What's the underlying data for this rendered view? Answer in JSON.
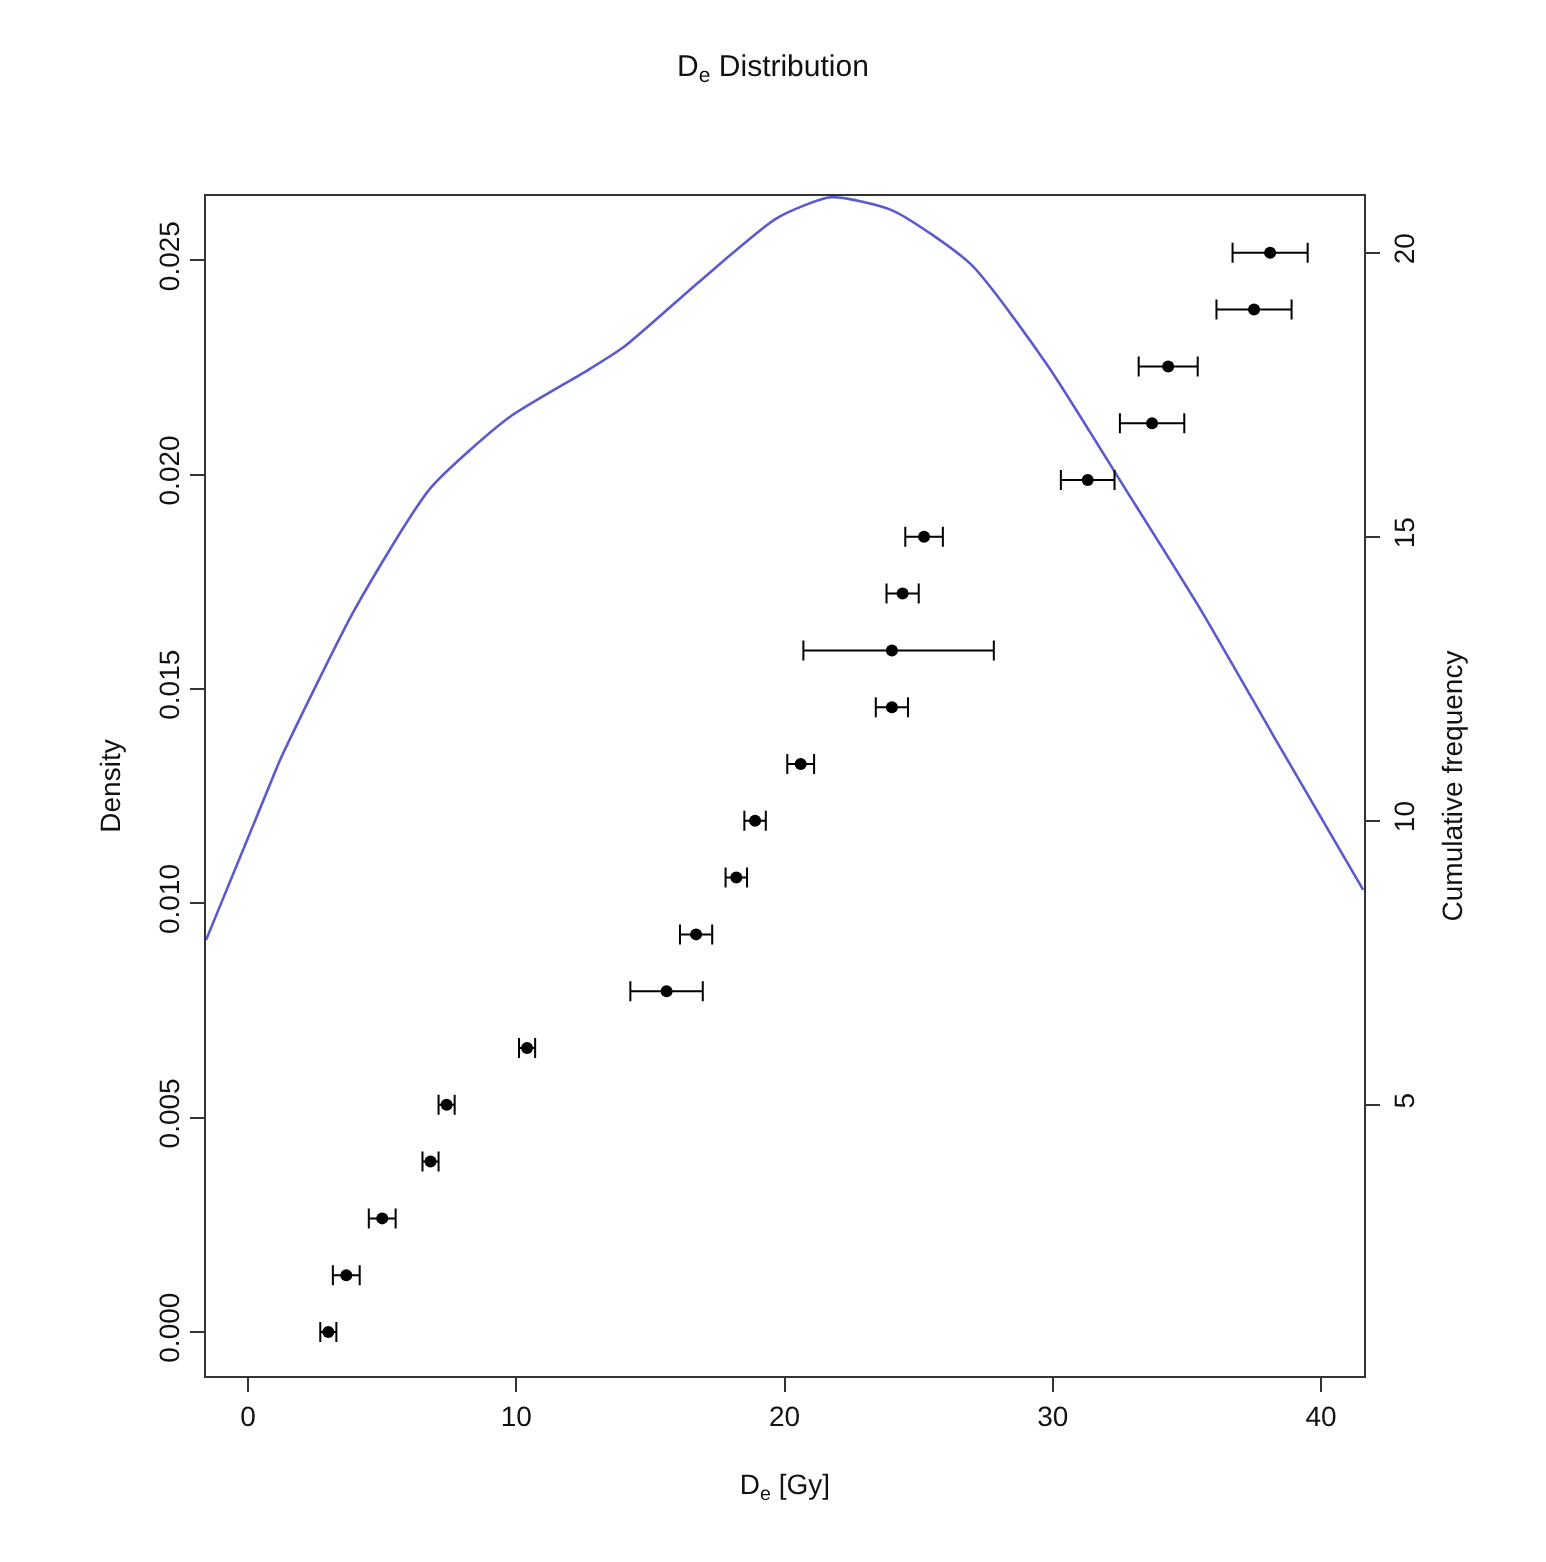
{
  "chart_data": {
    "type": "line",
    "title": "D$_{e}$ Distribution",
    "xlabel": "D$_{e}$ [Gy]",
    "ylabel": "Density",
    "y2label": "Cumulative frequency",
    "xlim": [
      -1.57,
      41.6
    ],
    "xticks": [
      0,
      10,
      20,
      30,
      40
    ],
    "ylim": [
      -0.00103,
      0.0265
    ],
    "yticks": [
      {
        "value": 0,
        "label": "0.000"
      },
      {
        "value": 0.005,
        "label": "0.005"
      },
      {
        "value": 0.01,
        "label": "0.010"
      },
      {
        "value": 0.015,
        "label": "0.015"
      },
      {
        "value": 0.02,
        "label": "0.020"
      },
      {
        "value": 0.025,
        "label": "0.025"
      }
    ],
    "y2lim": [
      0.225,
      21.0
    ],
    "y2ticks": [
      5,
      10,
      15,
      20
    ],
    "series": [
      {
        "color": "#5a5acc",
        "line_style": "solid",
        "marker": "none",
        "x": [
          -1.57,
          0.82,
          1.19,
          3.96,
          6.79,
          9.7,
          12.54,
          14.03,
          16.87,
          19.7,
          21.72,
          24.03,
          26.94,
          29.78,
          32.69,
          35.52,
          38.36,
          41.57
        ],
        "values": [
          0.00914,
          0.01278,
          0.01334,
          0.01684,
          0.01968,
          0.02132,
          0.02239,
          0.02299,
          0.02453,
          0.02598,
          0.02647,
          0.02616,
          0.02491,
          0.02257,
          0.01968,
          0.01684,
          0.01376,
          0.01031
        ]
      },
      {
        "type": "scatter",
        "axis": "y2",
        "color": "#000000",
        "marker": "circle",
        "x": [
          2.99,
          3.66,
          5.0,
          6.8,
          7.4,
          10.4,
          15.6,
          16.7,
          18.2,
          18.9,
          20.6,
          24.0,
          24.0,
          24.4,
          25.2,
          31.3,
          33.7,
          34.3,
          37.5,
          38.1
        ],
        "values": [
          1,
          2,
          3,
          4,
          5,
          6,
          7,
          8,
          9,
          10,
          11,
          12,
          13,
          14,
          15,
          16,
          17,
          18,
          19,
          20
        ],
        "xerrors": [
          0.3,
          0.5,
          0.5,
          0.3,
          0.3,
          0.3,
          1.35,
          0.6,
          0.4,
          0.4,
          0.5,
          0.6,
          [
            20.7,
            27.8
          ],
          0.6,
          0.7,
          1.0,
          1.2,
          1.1,
          1.4,
          1.4
        ]
      }
    ]
  }
}
